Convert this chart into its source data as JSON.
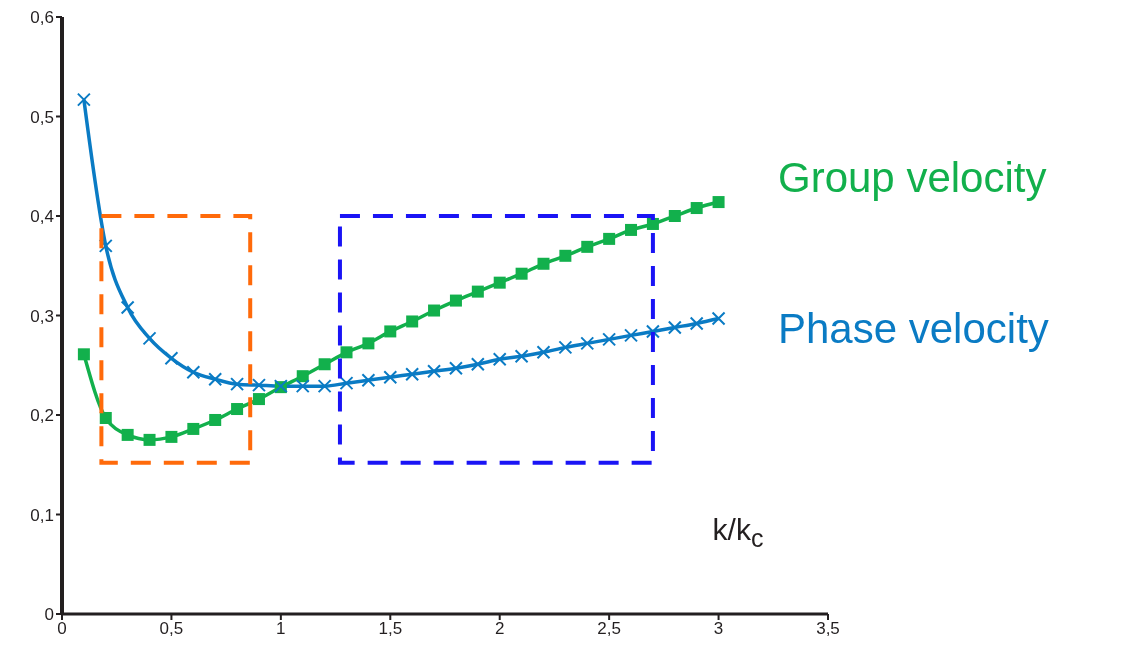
{
  "chart_data": {
    "type": "line",
    "xlabel": "k/k$_{c}$",
    "x": [
      0.1,
      0.2,
      0.3,
      0.4,
      0.5,
      0.6,
      0.7,
      0.8,
      0.9,
      1.0,
      1.1,
      1.2,
      1.3,
      1.4,
      1.5,
      1.6,
      1.7,
      1.8,
      1.9,
      2.0,
      2.1,
      2.2,
      2.3,
      2.4,
      2.5,
      2.6,
      2.7,
      2.8,
      2.9,
      3.0
    ],
    "series": [
      {
        "name": "Group velocity",
        "color": "#12b04c",
        "marker": "square",
        "values": [
          0.261,
          0.197,
          0.18,
          0.175,
          0.178,
          0.186,
          0.195,
          0.206,
          0.216,
          0.228,
          0.239,
          0.251,
          0.263,
          0.272,
          0.284,
          0.294,
          0.305,
          0.315,
          0.324,
          0.333,
          0.342,
          0.352,
          0.36,
          0.369,
          0.377,
          0.386,
          0.392,
          0.4,
          0.408,
          0.414
        ]
      },
      {
        "name": "Phase velocity",
        "color": "#0a7bc4",
        "marker": "cross",
        "values": [
          0.517,
          0.37,
          0.308,
          0.277,
          0.257,
          0.243,
          0.236,
          0.231,
          0.23,
          0.229,
          0.229,
          0.229,
          0.232,
          0.235,
          0.238,
          0.241,
          0.244,
          0.247,
          0.251,
          0.256,
          0.259,
          0.263,
          0.268,
          0.272,
          0.276,
          0.28,
          0.284,
          0.288,
          0.292,
          0.297
        ]
      }
    ],
    "xlim": [
      0,
      3.5
    ],
    "xticks": [
      0,
      {
        "value": 0.5,
        "label": "0,5"
      },
      1,
      {
        "value": 1.5,
        "label": "1,5"
      },
      2,
      {
        "value": 2.5,
        "label": "2,5"
      },
      3,
      {
        "value": 3.5,
        "label": "3,5"
      }
    ],
    "ylim": [
      0,
      0.6
    ],
    "yticks": [
      0,
      {
        "value": 0.1,
        "label": "0,1"
      },
      {
        "value": 0.2,
        "label": "0,2"
      },
      {
        "value": 0.3,
        "label": "0,3"
      },
      {
        "value": 0.4,
        "label": "0,4"
      },
      {
        "value": 0.5,
        "label": "0,5"
      },
      {
        "value": 0.6,
        "label": "0,6"
      }
    ],
    "grid": false,
    "legend": false
  }
}
